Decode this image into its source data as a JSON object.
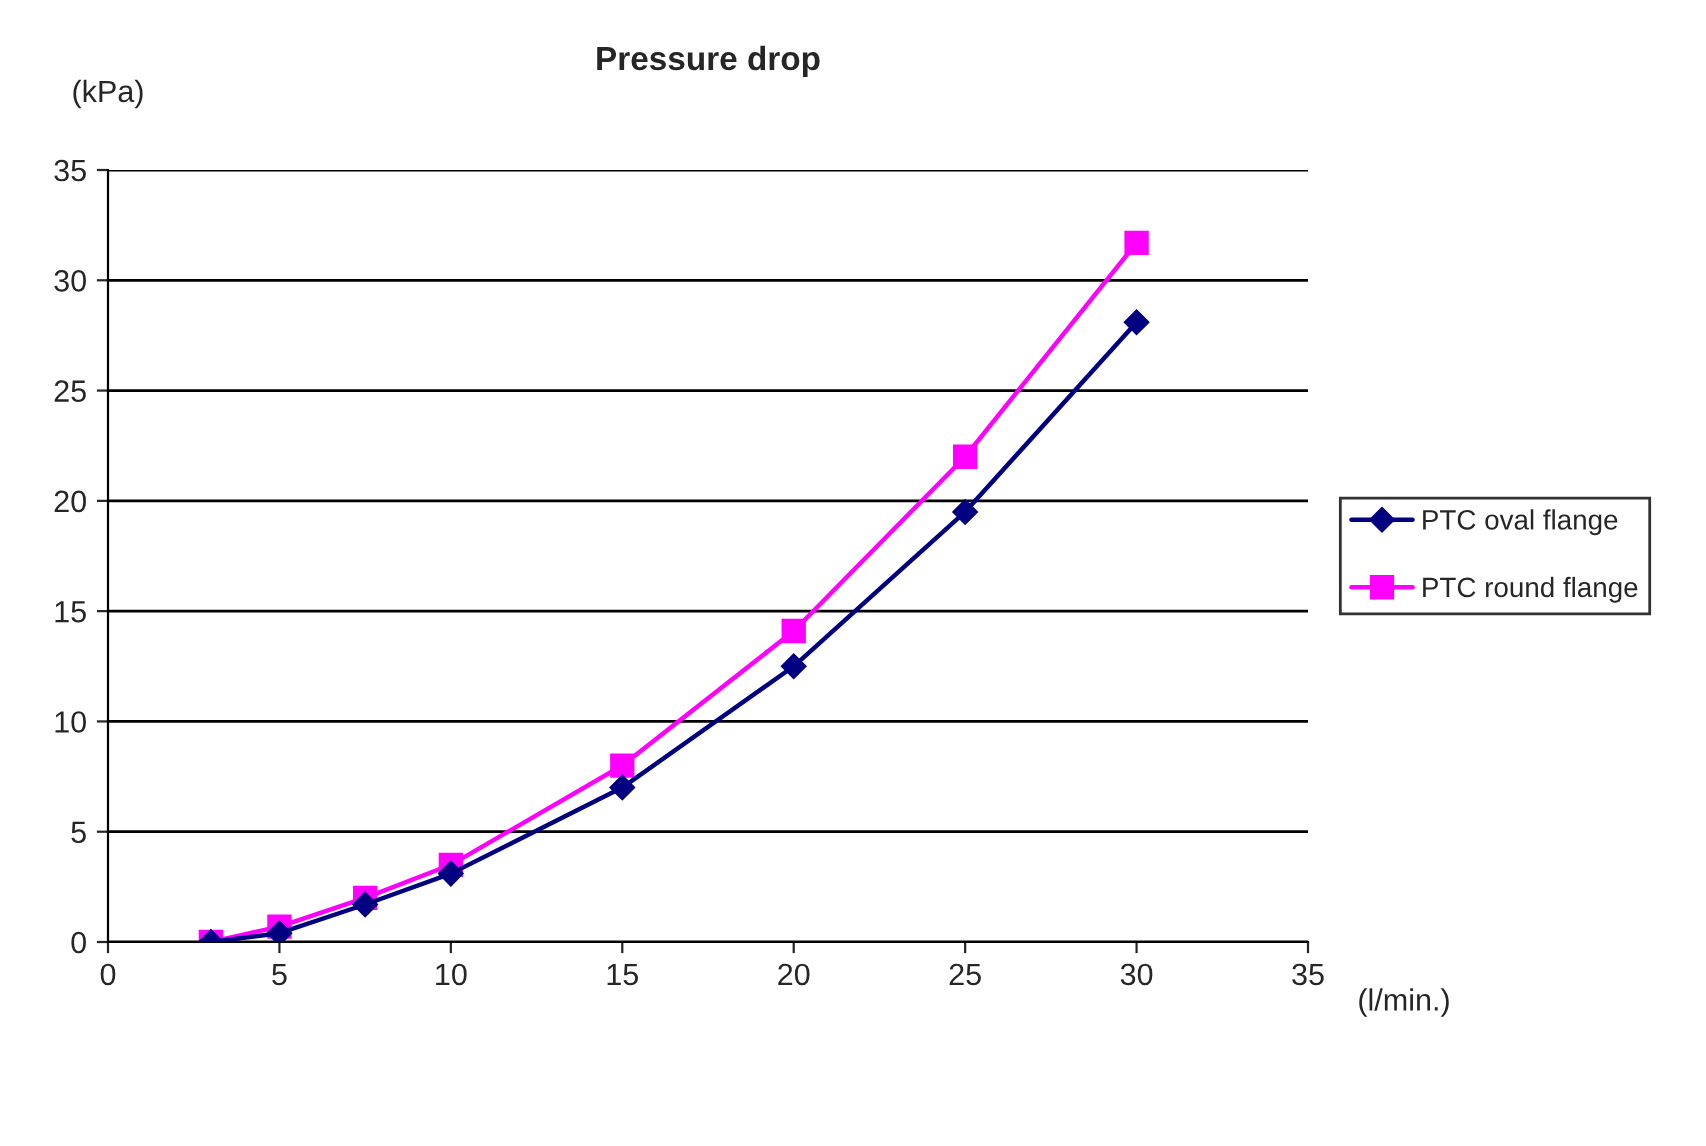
{
  "chart_data": {
    "type": "line",
    "title": "Pressure drop",
    "xlabel": "(l/min.)",
    "ylabel": "(kPa)",
    "x": [
      3,
      5,
      7.5,
      10,
      15,
      20,
      25,
      30
    ],
    "series": [
      {
        "name": "PTC oval flange",
        "color": "#000080",
        "marker": "diamond",
        "values": [
          0,
          0.4,
          1.7,
          3.1,
          7.0,
          12.5,
          19.5,
          28.1
        ]
      },
      {
        "name": "PTC round flange",
        "color": "#ff00ff",
        "marker": "square",
        "values": [
          0,
          0.7,
          2.0,
          3.5,
          8.0,
          14.1,
          22.0,
          31.7
        ]
      }
    ],
    "xlim": [
      0,
      35
    ],
    "xticks": [
      0,
      5,
      10,
      15,
      20,
      25,
      30,
      35
    ],
    "ylim": [
      0,
      35
    ],
    "yticks": [
      0,
      5,
      10,
      15,
      20,
      25,
      30,
      35
    ],
    "grid": "y",
    "legend": "right"
  }
}
